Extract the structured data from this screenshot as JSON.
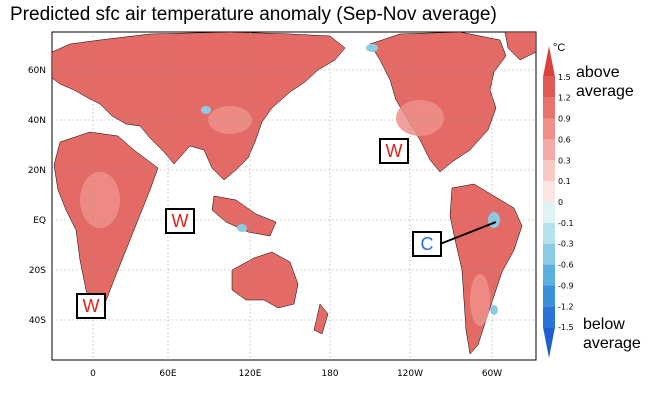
{
  "title": "Predicted sfc air temperature anomaly (Sep-Nov average)",
  "map": {
    "lat_ticks": [
      "60N",
      "40N",
      "20N",
      "EQ",
      "20S",
      "40S"
    ],
    "lon_ticks": [
      "0",
      "60E",
      "120E",
      "180",
      "120W",
      "60W"
    ]
  },
  "colorbar": {
    "unit": "°C",
    "levels": [
      "1.5",
      "1.2",
      "0.9",
      "0.6",
      "0.3",
      "0.1",
      "0",
      "-0.1",
      "-0.3",
      "-0.6",
      "-0.9",
      "-1.2",
      "-1.5"
    ],
    "colors": [
      "#d9413e",
      "#e05a55",
      "#e8736d",
      "#ef8f89",
      "#f4aaa5",
      "#f8c8c5",
      "#fce4e2",
      "#dff3f4",
      "#b6e2ea",
      "#8ccbe4",
      "#5cb0e0",
      "#3d8fdc",
      "#2a74d6",
      "#1d5fd0"
    ],
    "above_label_1": "above",
    "above_label_2": "average",
    "below_label_1": "below",
    "below_label_2": "average"
  },
  "annotations": [
    {
      "letter": "W",
      "color": "#e0201c"
    },
    {
      "letter": "W",
      "color": "#e0201c"
    },
    {
      "letter": "W",
      "color": "#e0201c"
    },
    {
      "letter": "W",
      "color": "#e0201c"
    },
    {
      "letter": "C",
      "color": "#2a6fe0"
    }
  ]
}
